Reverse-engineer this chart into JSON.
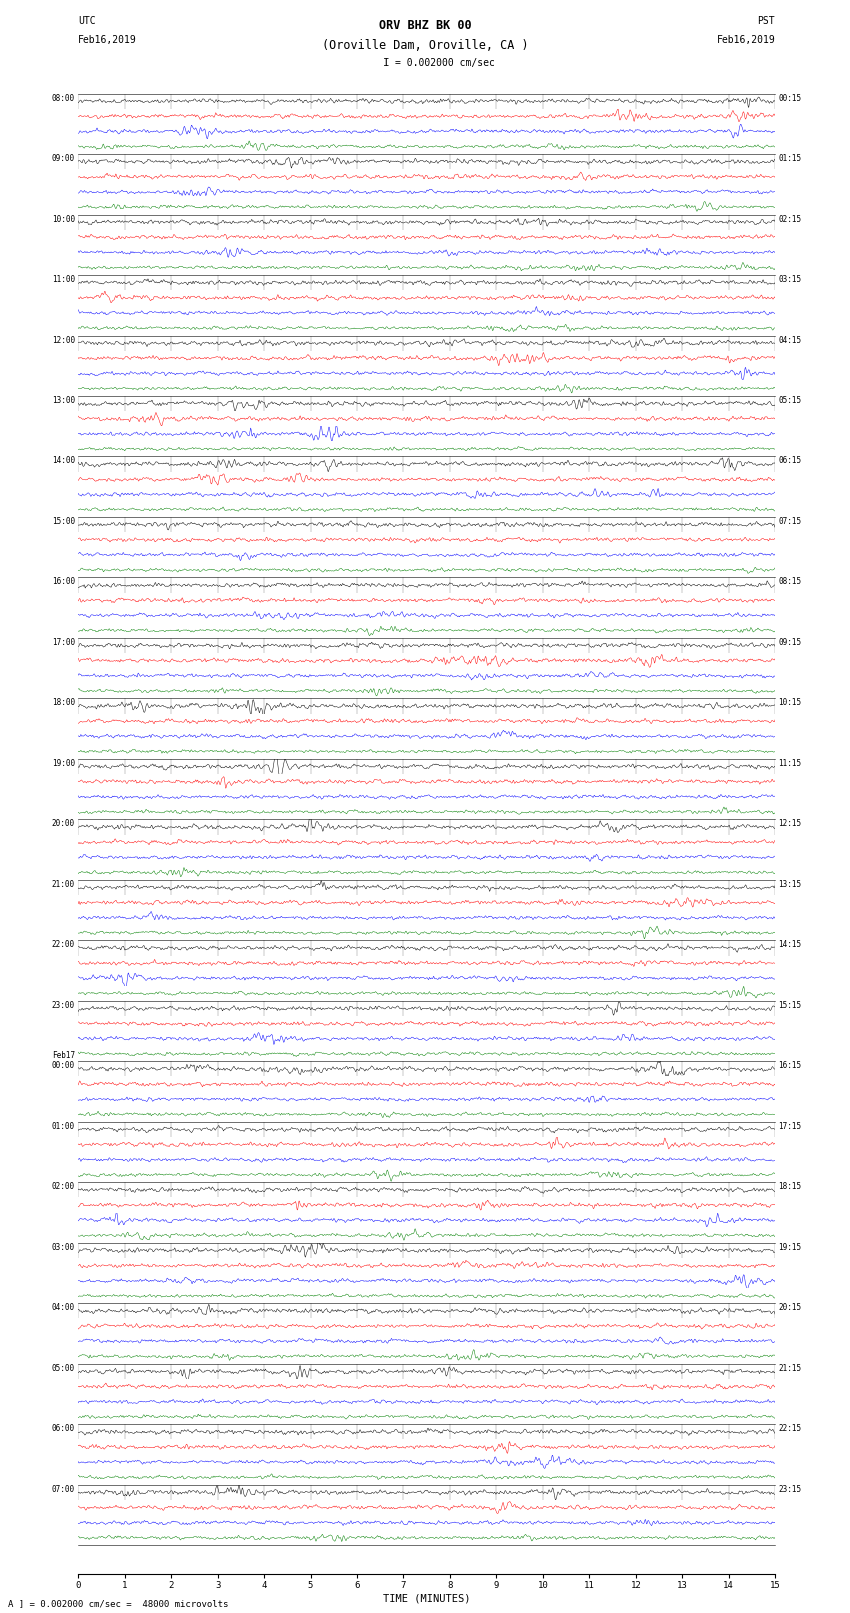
{
  "title_line1": "ORV BHZ BK 00",
  "title_line2": "(Oroville Dam, Oroville, CA )",
  "scale_label": "= 0.002000 cm/sec",
  "footer_label": "A ] = 0.002000 cm/sec =  48000 microvolts",
  "utc_label": "UTC",
  "pst_label": "PST",
  "date_left": "Feb16,2019",
  "date_right": "Feb16,2019",
  "xlabel": "TIME (MINUTES)",
  "left_times_utc": [
    "08:00",
    "09:00",
    "10:00",
    "11:00",
    "12:00",
    "13:00",
    "14:00",
    "15:00",
    "16:00",
    "17:00",
    "18:00",
    "19:00",
    "20:00",
    "21:00",
    "22:00",
    "23:00",
    "Feb17\n00:00",
    "01:00",
    "02:00",
    "03:00",
    "04:00",
    "05:00",
    "06:00",
    "07:00"
  ],
  "right_times_pst": [
    "00:15",
    "01:15",
    "02:15",
    "03:15",
    "04:15",
    "05:15",
    "06:15",
    "07:15",
    "08:15",
    "09:15",
    "10:15",
    "11:15",
    "12:15",
    "13:15",
    "14:15",
    "15:15",
    "16:15",
    "17:15",
    "18:15",
    "19:15",
    "20:15",
    "21:15",
    "22:15",
    "23:15"
  ],
  "n_rows": 24,
  "traces_per_row": 4,
  "colors": [
    "black",
    "red",
    "blue",
    "green"
  ],
  "background": "white",
  "fig_width": 8.5,
  "fig_height": 16.13,
  "xmin": 0,
  "xmax": 15,
  "event_row": 11,
  "event_minute": 4.3,
  "event_trace": 0
}
